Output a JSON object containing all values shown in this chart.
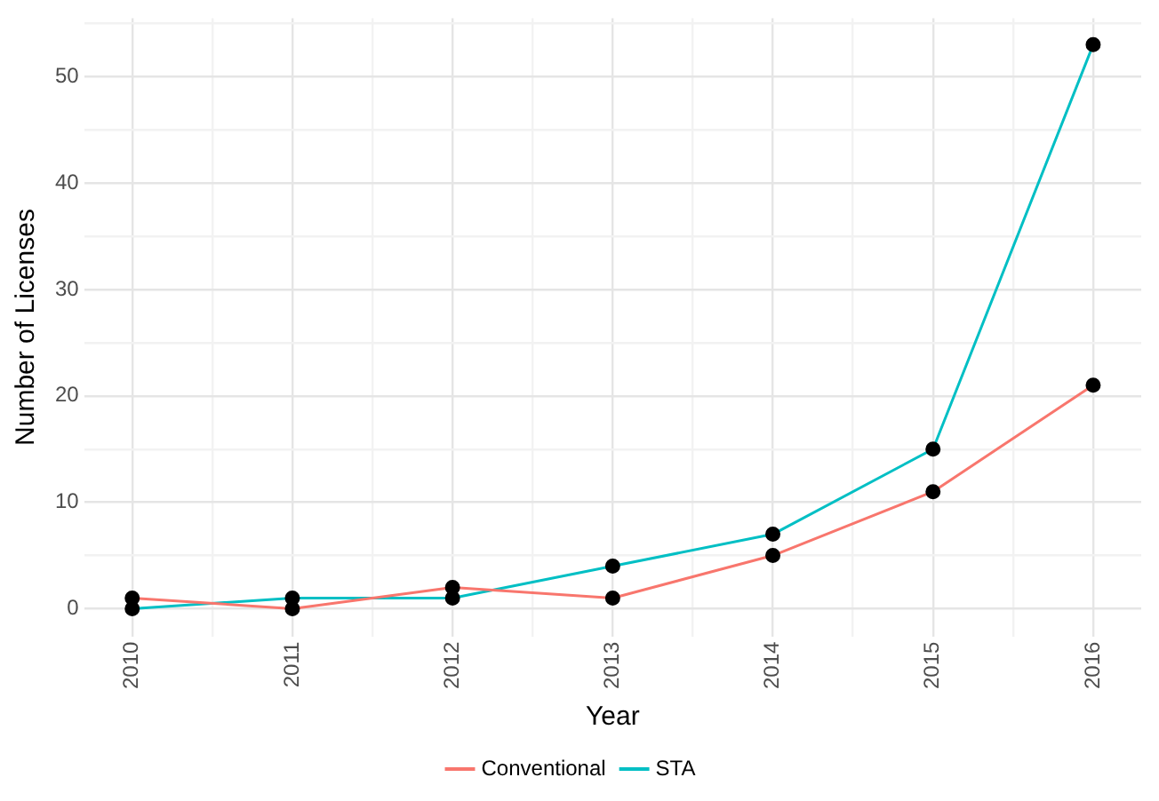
{
  "chart_data": {
    "type": "line",
    "xlabel": "Year",
    "ylabel": "Number of Licenses",
    "x": [
      2010,
      2011,
      2012,
      2013,
      2014,
      2015,
      2016
    ],
    "series": [
      {
        "name": "Conventional",
        "color": "#f8766d",
        "values": [
          1,
          0,
          2,
          1,
          5,
          11,
          21
        ]
      },
      {
        "name": "STA",
        "color": "#00bfc4",
        "values": [
          0,
          1,
          1,
          4,
          7,
          15,
          53
        ]
      }
    ],
    "xlim": [
      2009.7,
      2016.3
    ],
    "xticks": [
      2010,
      {
        "value": 2010.5,
        "label": null
      },
      2011,
      {
        "value": 2011.5,
        "label": null
      },
      2012,
      {
        "value": 2012.5,
        "label": null
      },
      2013,
      {
        "value": 2013.5,
        "label": null
      },
      2014,
      {
        "value": 2014.5,
        "label": null
      },
      2015,
      {
        "value": 2015.5,
        "label": null
      },
      2016
    ],
    "ylim": [
      -2.6,
      55.5
    ],
    "yticks": [
      0,
      {
        "value": 5,
        "label": null
      },
      10,
      {
        "value": 15,
        "label": null
      },
      20,
      {
        "value": 25,
        "label": null
      },
      30,
      {
        "value": 35,
        "label": null
      },
      40,
      {
        "value": 45,
        "label": null
      },
      50,
      {
        "value": 55,
        "label": null
      }
    ],
    "grid": true,
    "legend": "bottom",
    "marker": "circle",
    "line_style": "solid"
  }
}
